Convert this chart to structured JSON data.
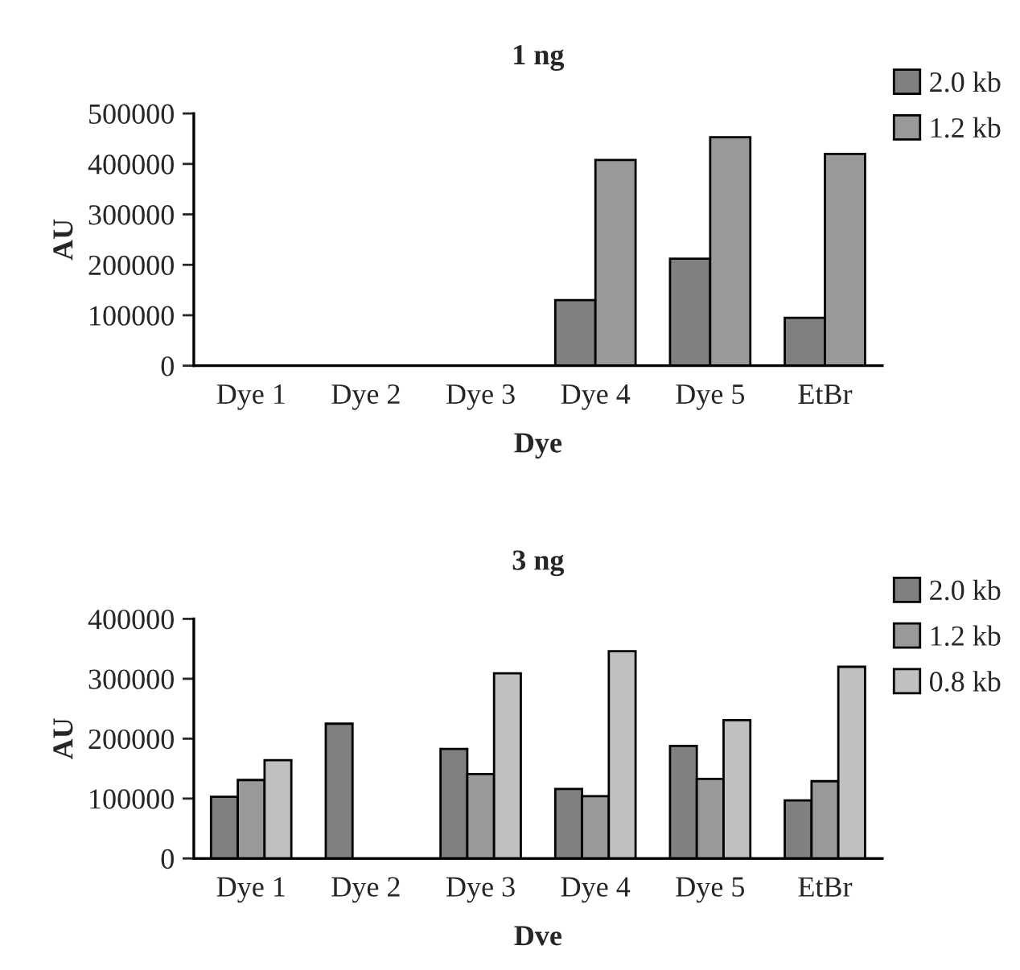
{
  "chart_data": [
    {
      "type": "bar",
      "title": "1 ng",
      "xlabel": "Dye",
      "ylabel": "AU",
      "categories": [
        "Dye 1",
        "Dye 2",
        "Dye 3",
        "Dye 4",
        "Dye 5",
        "EtBr"
      ],
      "ylim": [
        0,
        500000
      ],
      "yticks": [
        0,
        100000,
        200000,
        300000,
        400000,
        500000
      ],
      "legend": "top right",
      "series": [
        {
          "name": "2.0 kb",
          "color": "#808080",
          "values": [
            null,
            null,
            null,
            130000,
            212000,
            95000
          ]
        },
        {
          "name": "1.2 kb",
          "color": "#999999",
          "values": [
            null,
            null,
            null,
            408000,
            453000,
            420000
          ]
        }
      ]
    },
    {
      "type": "bar",
      "title": "3 ng",
      "xlabel": "Dve",
      "ylabel": "AU",
      "categories": [
        "Dye 1",
        "Dye 2",
        "Dye 3",
        "Dye 4",
        "Dye 5",
        "EtBr"
      ],
      "ylim": [
        0,
        400000
      ],
      "yticks": [
        0,
        100000,
        200000,
        300000,
        400000
      ],
      "legend": "top right",
      "series": [
        {
          "name": "2.0 kb",
          "color": "#808080",
          "values": [
            103000,
            225000,
            183000,
            116000,
            188000,
            97000
          ]
        },
        {
          "name": "1.2 kb",
          "color": "#999999",
          "values": [
            131000,
            null,
            141000,
            104000,
            133000,
            129000
          ]
        },
        {
          "name": "0.8 kb",
          "color": "#c0c0c0",
          "values": [
            164000,
            null,
            309000,
            346000,
            231000,
            320000
          ]
        }
      ]
    }
  ]
}
